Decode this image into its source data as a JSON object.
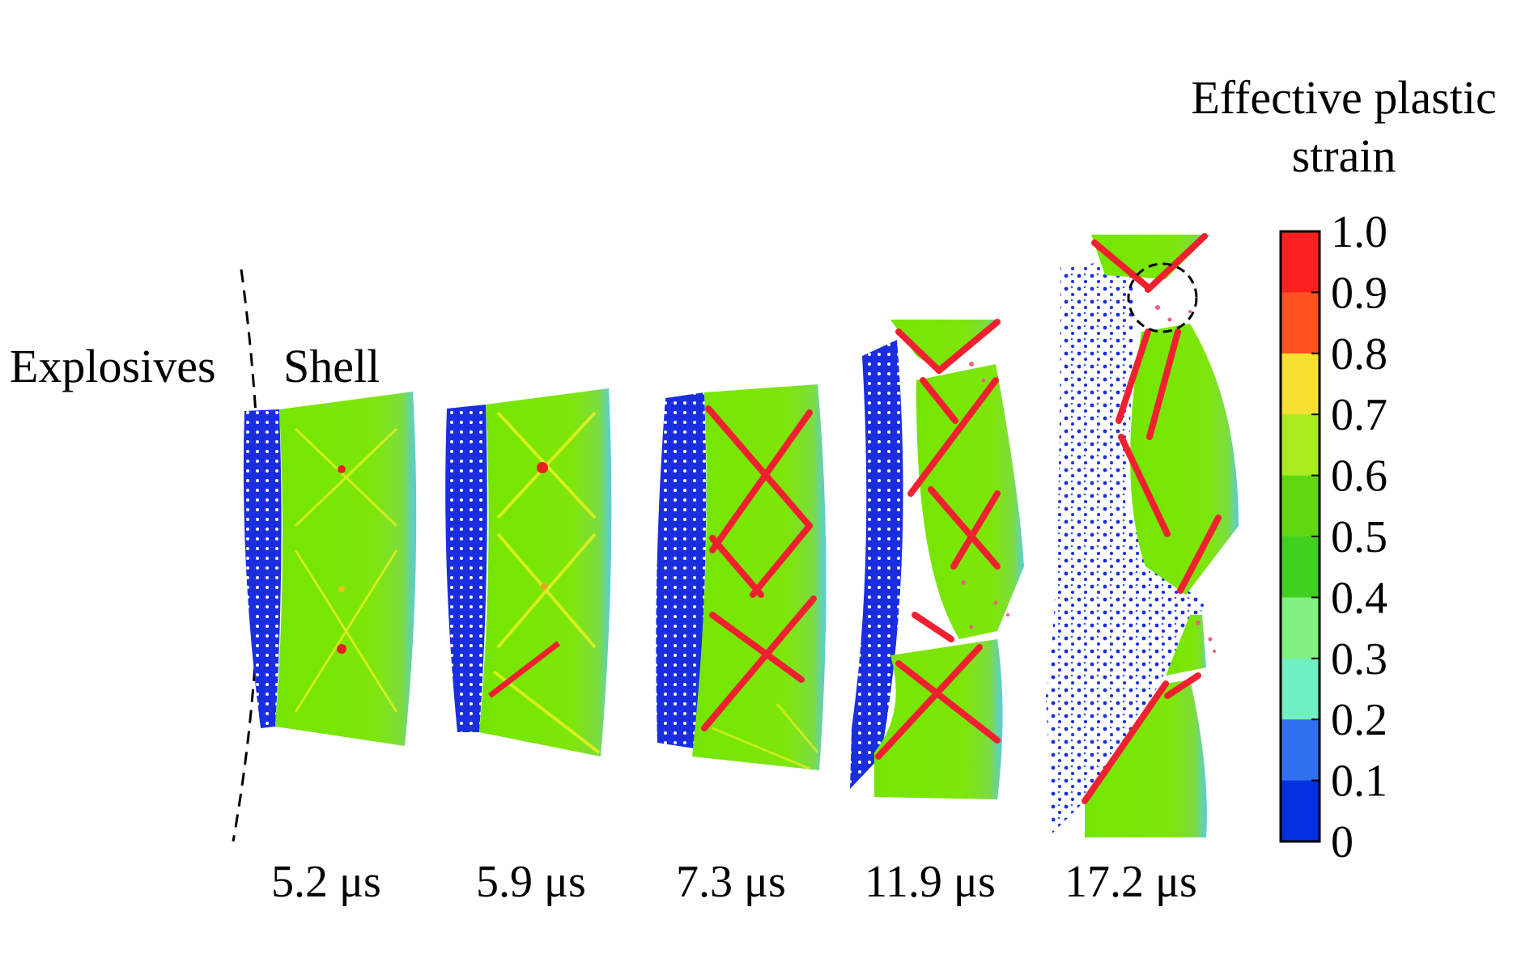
{
  "labels": {
    "explosives": "Explosives",
    "shell": "Shell"
  },
  "colorbar": {
    "title_line1": "Effective plastic",
    "title_line2": "strain",
    "ticks": [
      "1.0",
      "0.9",
      "0.8",
      "0.7",
      "0.6",
      "0.5",
      "0.4",
      "0.3",
      "0.2",
      "0.1",
      "0"
    ],
    "colors": [
      "#ff2020",
      "#ff5020",
      "#f6e030",
      "#a8ec20",
      "#60d810",
      "#40d020",
      "#80f080",
      "#70f0c0",
      "#3070f0",
      "#0030e0"
    ]
  },
  "colors": {
    "shell_green": "#72e400",
    "shell_edge": "#4fd0e0",
    "crack_red": "#f02030",
    "explosive_blue": "#1a2ee0"
  },
  "frames": [
    {
      "time": "5.2 μs"
    },
    {
      "time": "5.9 μs"
    },
    {
      "time": "7.3 μs"
    },
    {
      "time": "11.9 μs"
    },
    {
      "time": "17.2 μs"
    }
  ]
}
